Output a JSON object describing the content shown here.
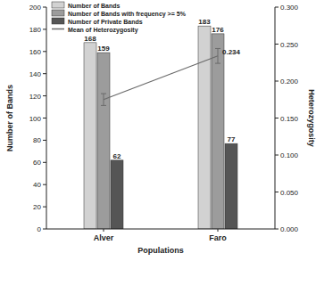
{
  "chart_data": {
    "type": "bar",
    "x_label": "Populations",
    "y_label": "Number of Bands",
    "y2_label": "Heterozygosity",
    "categories": [
      "Alver",
      "Faro"
    ],
    "series": [
      {
        "name": "Number of Bands",
        "color": "#d2d2d2",
        "values": [
          168,
          183
        ]
      },
      {
        "name": "Number of Bands with frequency >= 5%",
        "color": "#9c9c9c",
        "values": [
          159,
          176
        ]
      },
      {
        "name": "Number of Private Bands",
        "color": "#555555",
        "values": [
          62,
          77
        ]
      },
      {
        "name": "Mean of Heterozygosity",
        "type": "line",
        "axis": "y2",
        "color": "#6a6a6a",
        "marker": "none",
        "line_style": "solid",
        "values": [
          0.175,
          0.234
        ],
        "value_labels": [
          null,
          "0.234"
        ],
        "errors": [
          0.008,
          0.01
        ]
      }
    ],
    "ylim": [
      0,
      200
    ],
    "yticks": [
      0,
      20,
      40,
      60,
      80,
      100,
      120,
      140,
      160,
      180,
      200
    ],
    "y2lim": [
      0,
      0.3
    ],
    "y2ticks": [
      {
        "value": 0,
        "label": "0.000"
      },
      {
        "value": 0.05,
        "label": "0.050"
      },
      {
        "value": 0.1,
        "label": "0.100"
      },
      {
        "value": 0.15,
        "label": "0.150"
      },
      {
        "value": 0.2,
        "label": "0.200"
      },
      {
        "value": 0.25,
        "label": "0.250"
      },
      {
        "value": 0.3,
        "label": "0.300"
      }
    ],
    "legend": "top-left",
    "data_labels": true,
    "grid": false
  }
}
